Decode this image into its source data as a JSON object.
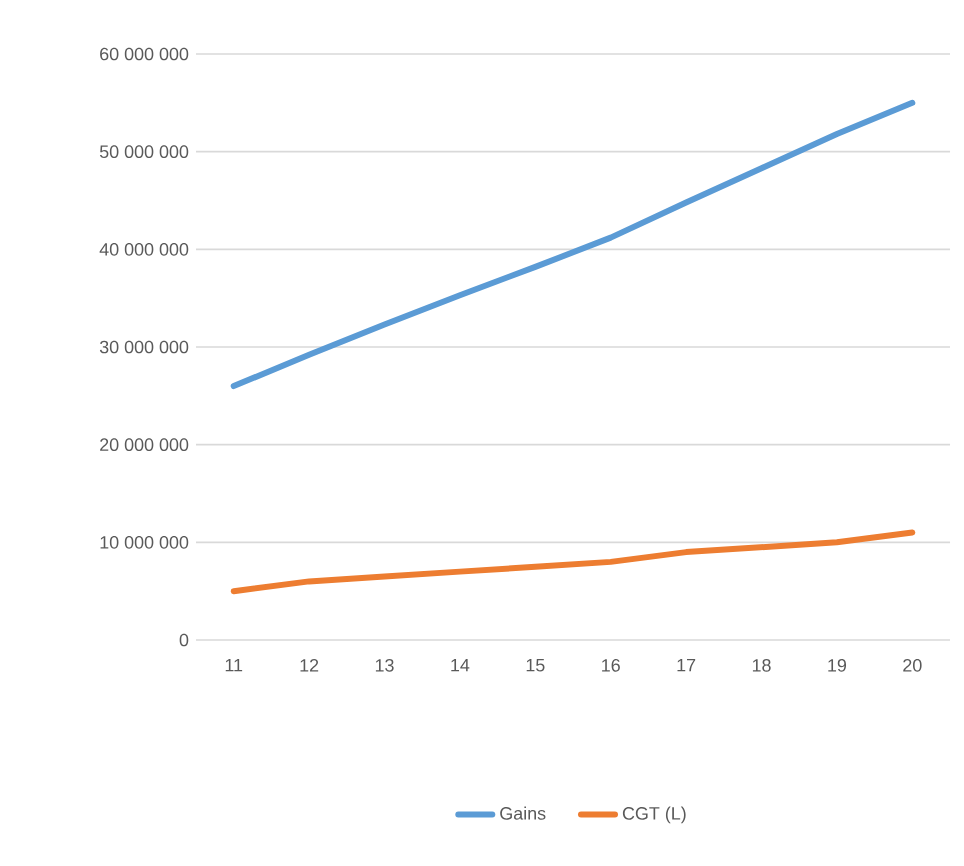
{
  "chart_data": {
    "type": "line",
    "categories": [
      "11",
      "12",
      "13",
      "14",
      "15",
      "16",
      "17",
      "18",
      "19",
      "20"
    ],
    "series": [
      {
        "name": "Gains",
        "color": "#5b9bd5",
        "values": [
          26000000,
          29200000,
          32300000,
          35300000,
          38200000,
          41200000,
          44800000,
          48300000,
          51800000,
          55000000
        ]
      },
      {
        "name": "CGT (L)",
        "color": "#ed7d31",
        "values": [
          5000000,
          6000000,
          6500000,
          7000000,
          7500000,
          8000000,
          9000000,
          9500000,
          10000000,
          11000000
        ]
      }
    ],
    "ylim": [
      0,
      60000000
    ],
    "yticks": [
      {
        "value": 0,
        "label": "0"
      },
      {
        "value": 10000000,
        "label": "10 000 000"
      },
      {
        "value": 20000000,
        "label": "20 000 000"
      },
      {
        "value": 30000000,
        "label": "30 000 000"
      },
      {
        "value": 40000000,
        "label": "40 000 000"
      },
      {
        "value": 50000000,
        "label": "50 000 000"
      },
      {
        "value": 60000000,
        "label": "60 000 000"
      }
    ],
    "grid": "y",
    "legend": "bottom",
    "marker": "none",
    "line_style": "solid"
  }
}
